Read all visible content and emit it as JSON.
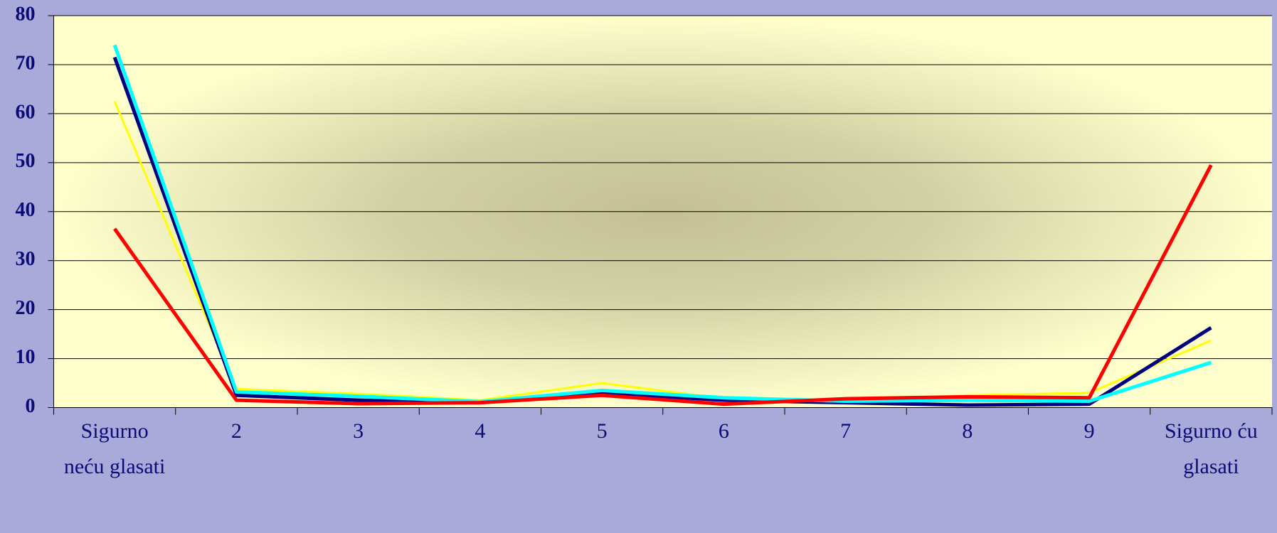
{
  "chart_data": {
    "type": "line",
    "categories": [
      "Sigurno neću glasati",
      "2",
      "3",
      "4",
      "5",
      "6",
      "7",
      "8",
      "9",
      "Sigurno ću glasati"
    ],
    "series": [
      {
        "color": "#ffff00",
        "values": [
          62.5,
          3.8,
          2.8,
          1.5,
          5,
          1.8,
          1.2,
          2.5,
          3,
          13.7
        ]
      },
      {
        "color": "#000080",
        "values": [
          71.5,
          2.5,
          1.5,
          1,
          3,
          1.5,
          1,
          0.5,
          0.7,
          16.3
        ]
      },
      {
        "color": "#00ffff",
        "values": [
          74,
          3.2,
          2.3,
          1.2,
          3.5,
          2,
          1.3,
          1.5,
          1.3,
          9.2
        ]
      },
      {
        "color": "#ff0000",
        "values": [
          36.5,
          1.5,
          0.8,
          1,
          2.5,
          0.7,
          1.8,
          2.2,
          2,
          49.5
        ]
      }
    ],
    "ylim": [
      0,
      80
    ],
    "yticks": [
      0,
      10,
      20,
      30,
      40,
      50,
      60,
      70,
      80
    ],
    "grid": true
  }
}
